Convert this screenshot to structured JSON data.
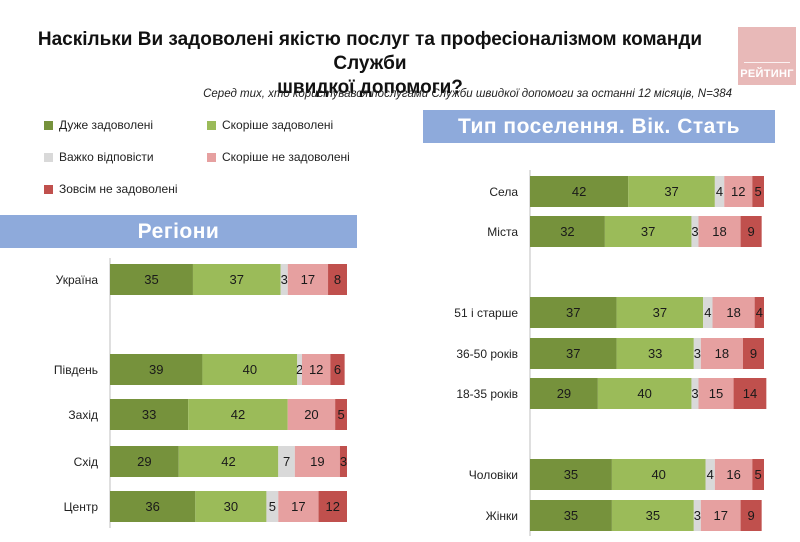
{
  "title_line1": "Наскільки Ви задоволені якістю послуг та професіоналізмом команди Служби",
  "title_line2": "швидкої допомоги?",
  "subtitle": "Серед тих, хто користувався послугами Служби швидкої допомоги за останні 12 місяців, N=384",
  "logo_text": "РЕЙТИНГ",
  "left_header": "Регіони",
  "right_header": "Тип поселення. Вік. Стать",
  "chart_data": {
    "type": "bar",
    "stacked": true,
    "orientation": "horizontal",
    "series": [
      {
        "name": "Дуже задоволені",
        "color": "#76923c"
      },
      {
        "name": "Скоріше задоволені",
        "color": "#9bbb59"
      },
      {
        "name": "Важко відповісти",
        "color": "#d9d9d9"
      },
      {
        "name": "Скоріше не задоволені",
        "color": "#e6a0a0"
      },
      {
        "name": "Зовсім не задоволені",
        "color": "#c0504d"
      }
    ],
    "panels": [
      {
        "name": "Регіони",
        "rows": [
          {
            "label": "Україна",
            "values": [
              35,
              37,
              3,
              17,
              8
            ]
          },
          {
            "label": "Південь",
            "values": [
              39,
              40,
              2,
              12,
              6
            ]
          },
          {
            "label": "Захід",
            "values": [
              33,
              42,
              0,
              20,
              5
            ]
          },
          {
            "label": "Схід",
            "values": [
              29,
              42,
              7,
              19,
              3
            ]
          },
          {
            "label": "Центр",
            "values": [
              36,
              30,
              5,
              17,
              12
            ]
          }
        ]
      },
      {
        "name": "Тип поселення. Вік. Стать",
        "rows": [
          {
            "label": "Села",
            "values": [
              42,
              37,
              4,
              12,
              5
            ]
          },
          {
            "label": "Міста",
            "values": [
              32,
              37,
              3,
              18,
              9
            ]
          },
          {
            "label": "51 і старше",
            "values": [
              37,
              37,
              4,
              18,
              4
            ]
          },
          {
            "label": "36-50 років",
            "values": [
              37,
              33,
              3,
              18,
              9
            ]
          },
          {
            "label": "18-35 років",
            "values": [
              29,
              40,
              3,
              15,
              14
            ]
          },
          {
            "label": "Чоловіки",
            "values": [
              35,
              40,
              4,
              16,
              5
            ]
          },
          {
            "label": "Жінки",
            "values": [
              35,
              35,
              3,
              17,
              9
            ]
          }
        ]
      }
    ],
    "legend_position": "top-left"
  }
}
